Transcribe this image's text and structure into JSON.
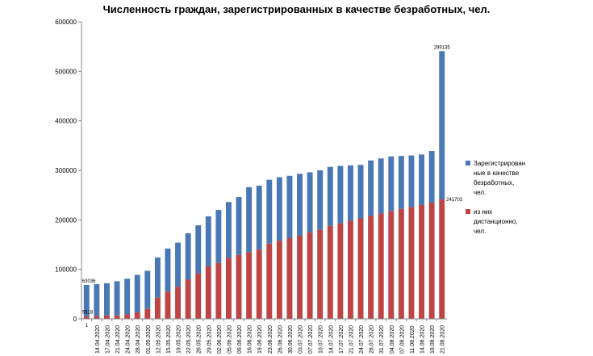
{
  "chart_data": {
    "type": "bar",
    "title": "Численность граждан, зарегистрированных в качестве безработных, чел.",
    "ylim": [
      0,
      600000
    ],
    "yticks": [
      "0",
      "100000",
      "200000",
      "300000",
      "400000",
      "500000",
      "600000"
    ],
    "grid": false,
    "legend_position": "right",
    "first_category_label": "1",
    "categories": [
      "",
      "14.04.2020",
      "17.04.2020",
      "21.04.2020",
      "24.04.2020",
      "28.04.2020",
      "01.05.2020",
      "12.05.2020",
      "15.05.2020",
      "19.05.2020",
      "22.05.2020",
      "26.05.2020",
      "29.05.2020",
      "02.06.2020",
      "05.06.2020",
      "09.06.2020",
      "16.06.2020",
      "19.06.2020",
      "23.06.2020",
      "26.06.2020",
      "30.06.2020",
      "03.07.2020",
      "07.07.2020",
      "10.07.2020",
      "14.07.2020",
      "17.07.2020",
      "21.07.2020",
      "24.07.2020",
      "28.07.2020",
      "31.07.2020",
      "04.08.2020",
      "07.08.2020",
      "11.08.2020",
      "14.08.2020",
      "18.08.2020",
      "21.08.2020"
    ],
    "series": [
      {
        "name": "Зарегистрированные в качестве безработных, чел.",
        "color": "#4a78b4",
        "values": [
          63036,
          64000,
          65000,
          69000,
          72000,
          76000,
          77000,
          81000,
          87000,
          89000,
          93000,
          97000,
          101000,
          107000,
          113000,
          117000,
          131000,
          129000,
          129000,
          128000,
          126000,
          125000,
          121000,
          120000,
          119000,
          116000,
          112000,
          108000,
          112000,
          111000,
          110000,
          107000,
          104000,
          102000,
          104000,
          299135
        ],
        "data_labels": {
          "0": "63036",
          "35": "299135"
        }
      },
      {
        "name": "из них дистанционно, чел.",
        "color": "#bd4545",
        "values": [
          5518,
          6000,
          7000,
          7000,
          9000,
          13000,
          20000,
          43000,
          55000,
          65000,
          80000,
          92000,
          106000,
          113000,
          123000,
          129000,
          135000,
          140000,
          152000,
          158000,
          163000,
          168000,
          175000,
          180000,
          188000,
          193000,
          198000,
          203000,
          208000,
          213000,
          218000,
          222000,
          226000,
          230000,
          235000,
          241703
        ],
        "data_labels": {
          "0": "5518",
          "35": "241703"
        }
      }
    ]
  },
  "legend": {
    "items": [
      {
        "lines": [
          "Зарегистрирован",
          "ные в качестве",
          "безработных,",
          "чел."
        ],
        "color": "#4a78b4"
      },
      {
        "lines": [
          "из них",
          "дистанционно,",
          "чел."
        ],
        "color": "#bd4545"
      }
    ]
  }
}
